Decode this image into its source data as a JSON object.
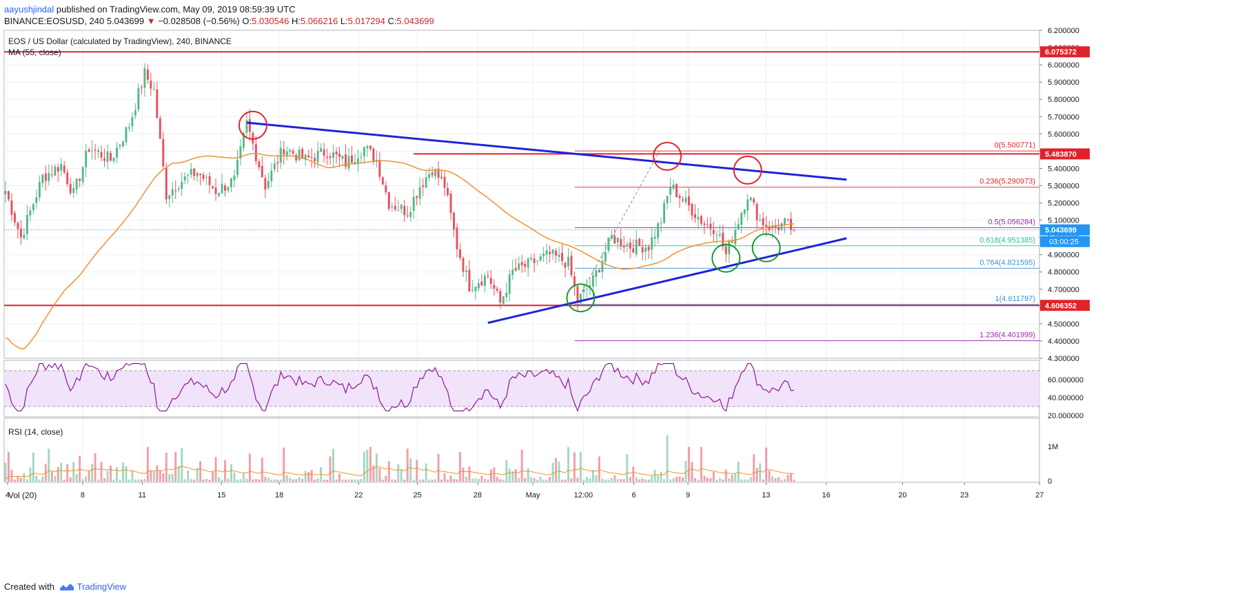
{
  "header": {
    "user": "aayushjindal",
    "published_text": "published on TradingView.com, May 09, 2019 08:59:39 UTC",
    "symbol": "BINANCE:EOSUSD, 240",
    "last": "5.043699",
    "change": "−0.028508 (−0.56%)",
    "ohlc": {
      "o_label": "O:",
      "o": "5.030546",
      "h_label": "H:",
      "h": "5.066216",
      "l_label": "L:",
      "l": "5.017294",
      "c_label": "C:",
      "c": "5.043699"
    }
  },
  "legend": {
    "title": "EOS / US Dollar (calculated by TradingView), 240, BINANCE",
    "ma": "MA (55, close)",
    "rsi": "RSI (14, close)",
    "vol": "Vol (20)"
  },
  "footer": {
    "created_with": "Created with",
    "brand": "TradingView"
  },
  "colors": {
    "up": "#53b987",
    "down": "#eb4d5c",
    "ma": "#f0912e",
    "trend": "#1f22d8",
    "level": "#e0232b",
    "rsi_line": "#8e1599",
    "rsi_band": "#f0e3fa",
    "fib_red": "#e0232b",
    "fib_green": "#26c39b",
    "fib_blue": "#3b8fd8",
    "fib_purple": "#9c27b0",
    "circle_red": "#e0232b",
    "circle_green": "#139c29"
  },
  "chart_data": {
    "type": "candlestick",
    "price_axis": {
      "min": 4.3,
      "max": 6.2,
      "ticks": [
        "6.200000",
        "6.100000",
        "6.000000",
        "5.900000",
        "5.800000",
        "5.700000",
        "5.600000",
        "5.500000",
        "5.400000",
        "5.300000",
        "5.200000",
        "5.100000",
        "5.000000",
        "4.900000",
        "4.800000",
        "4.700000",
        "4.600000",
        "4.500000",
        "4.400000",
        "4.300000"
      ]
    },
    "rsi_axis": {
      "min": 20,
      "max": 80,
      "ticks": [
        "60.000000",
        "40.000000",
        "20.000000"
      ],
      "band": [
        30,
        70
      ]
    },
    "volume_axis": {
      "ticks": [
        "1M",
        "0"
      ]
    },
    "time_axis": {
      "ticks": [
        "4",
        "8",
        "11",
        "15",
        "18",
        "22",
        "25",
        "28",
        "May",
        "12:00",
        "6",
        "9",
        "13",
        "16",
        "20",
        "23",
        "27"
      ]
    },
    "anchors": [
      {
        "i": 0,
        "p": 5.27
      },
      {
        "i": 5,
        "p": 5.0
      },
      {
        "i": 12,
        "p": 5.35
      },
      {
        "i": 18,
        "p": 5.42
      },
      {
        "i": 22,
        "p": 5.25
      },
      {
        "i": 27,
        "p": 5.52
      },
      {
        "i": 34,
        "p": 5.45
      },
      {
        "i": 40,
        "p": 5.65
      },
      {
        "i": 45,
        "p": 5.95
      },
      {
        "i": 48,
        "p": 5.85
      },
      {
        "i": 52,
        "p": 5.25
      },
      {
        "i": 56,
        "p": 5.32
      },
      {
        "i": 62,
        "p": 5.38
      },
      {
        "i": 68,
        "p": 5.27
      },
      {
        "i": 74,
        "p": 5.33
      },
      {
        "i": 78,
        "p": 5.66
      },
      {
        "i": 84,
        "p": 5.3
      },
      {
        "i": 90,
        "p": 5.52
      },
      {
        "i": 97,
        "p": 5.45
      },
      {
        "i": 104,
        "p": 5.5
      },
      {
        "i": 110,
        "p": 5.43
      },
      {
        "i": 116,
        "p": 5.52
      },
      {
        "i": 120,
        "p": 5.45
      },
      {
        "i": 124,
        "p": 5.2
      },
      {
        "i": 130,
        "p": 5.15
      },
      {
        "i": 134,
        "p": 5.3
      },
      {
        "i": 138,
        "p": 5.4
      },
      {
        "i": 142,
        "p": 5.3
      },
      {
        "i": 146,
        "p": 4.95
      },
      {
        "i": 150,
        "p": 4.72
      },
      {
        "i": 156,
        "p": 4.78
      },
      {
        "i": 160,
        "p": 4.62
      },
      {
        "i": 164,
        "p": 4.8
      },
      {
        "i": 170,
        "p": 4.85
      },
      {
        "i": 176,
        "p": 4.9
      },
      {
        "i": 182,
        "p": 4.85
      },
      {
        "i": 185,
        "p": 4.63
      },
      {
        "i": 190,
        "p": 4.75
      },
      {
        "i": 196,
        "p": 5.0
      },
      {
        "i": 202,
        "p": 4.95
      },
      {
        "i": 208,
        "p": 4.95
      },
      {
        "i": 212,
        "p": 5.1
      },
      {
        "i": 215,
        "p": 5.3
      },
      {
        "i": 220,
        "p": 5.2
      },
      {
        "i": 226,
        "p": 5.08
      },
      {
        "i": 230,
        "p": 5.05
      },
      {
        "i": 233,
        "p": 4.9
      },
      {
        "i": 236,
        "p": 5.05
      },
      {
        "i": 240,
        "p": 5.25
      },
      {
        "i": 244,
        "p": 5.1
      },
      {
        "i": 248,
        "p": 5.05
      },
      {
        "i": 252,
        "p": 5.08
      },
      {
        "i": 255,
        "p": 5.04
      }
    ],
    "candles_count": 256,
    "current_price": 5.043699,
    "price_labels": [
      {
        "price": 6.075372,
        "text": "6.075372",
        "color": "#e0232b"
      },
      {
        "price": 5.48387,
        "text": "5.483870",
        "color": "#e0232b"
      },
      {
        "price": 5.043699,
        "text": "5.043699",
        "color": "#2196f3"
      },
      {
        "price": 4.606352,
        "text": "4.606352",
        "color": "#e0232b"
      }
    ],
    "countdown": "03:00:25",
    "horizontal_levels": [
      6.075372,
      5.48387,
      4.606352
    ],
    "trendlines": [
      {
        "from": {
          "i": 78,
          "p": 5.665
        },
        "to": {
          "i": 272,
          "p": 5.335
        }
      },
      {
        "from": {
          "i": 156,
          "p": 4.505
        },
        "to": {
          "i": 272,
          "p": 4.995
        }
      }
    ],
    "fibonacci": [
      {
        "ratio": "0",
        "price": 5.500771,
        "text": "0(5.500771)",
        "color": "#e0232b"
      },
      {
        "ratio": "0.236",
        "price": 5.290973,
        "text": "0.236(5.290973)",
        "color": "#e0232b"
      },
      {
        "ratio": "0.5",
        "price": 5.056284,
        "text": "0.5(5.056284)",
        "color": "#9c27b0"
      },
      {
        "ratio": "0.618",
        "price": 4.951385,
        "text": "0.618(4.951385)",
        "color": "#26c39b"
      },
      {
        "ratio": "0.764",
        "price": 4.821595,
        "text": "0.764(4.821595)",
        "color": "#3b8fd8"
      },
      {
        "ratio": "1",
        "price": 4.611797,
        "text": "1(4.611797)",
        "color": "#3b8fd8"
      },
      {
        "ratio": "1.236",
        "price": 4.401999,
        "text": "1.236(4.401999)",
        "color": "#9c27b0"
      }
    ],
    "circles": [
      {
        "i": 80,
        "p": 5.65,
        "color": "red"
      },
      {
        "i": 214,
        "p": 5.47,
        "color": "red"
      },
      {
        "i": 240,
        "p": 5.39,
        "color": "red"
      },
      {
        "i": 186,
        "p": 4.65,
        "color": "green"
      },
      {
        "i": 233,
        "p": 4.88,
        "color": "green"
      },
      {
        "i": 246,
        "p": 4.94,
        "color": "green"
      }
    ]
  }
}
